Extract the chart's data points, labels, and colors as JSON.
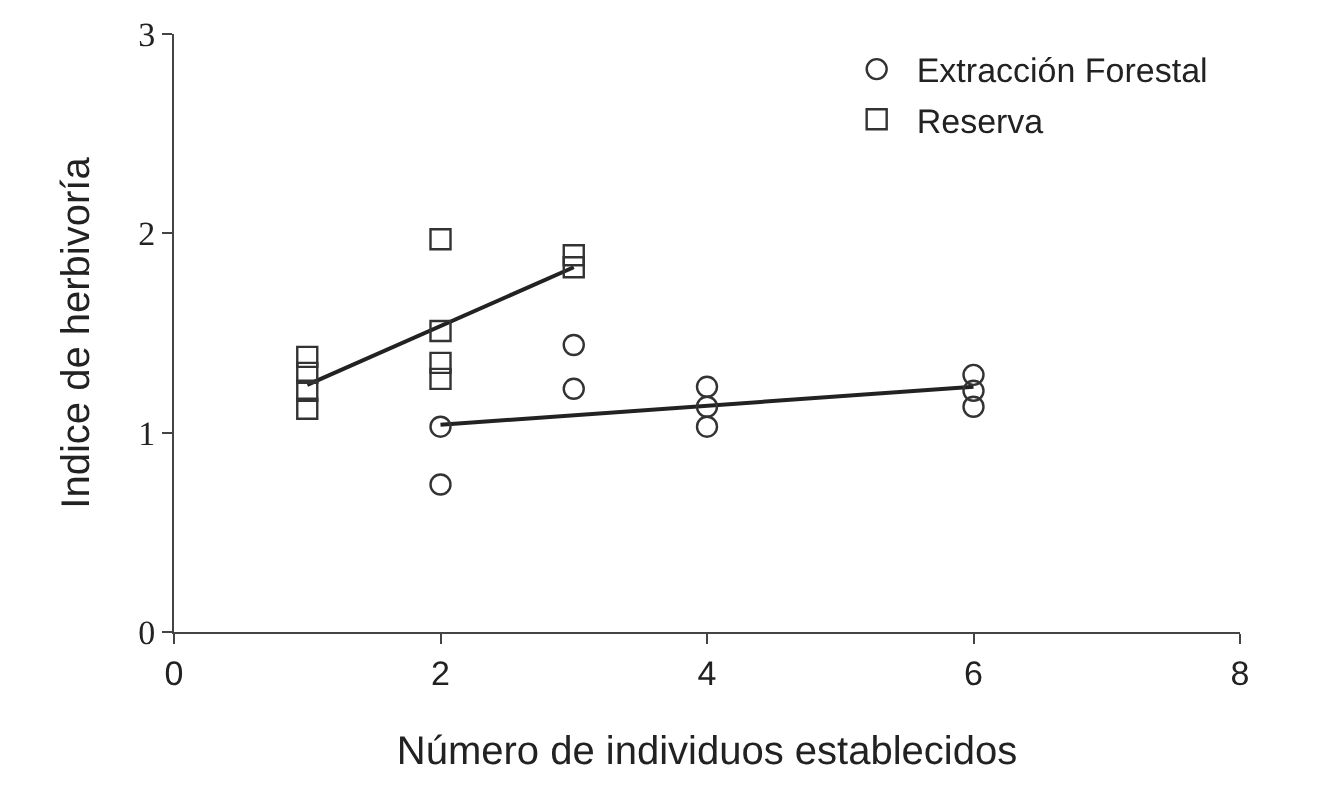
{
  "chart_data": {
    "type": "scatter",
    "xlabel": "Número de individuos establecidos",
    "ylabel": "Indice de herbivoría",
    "xlim": [
      0,
      8
    ],
    "xticks": [
      0,
      2,
      4,
      6,
      8
    ],
    "ylim": [
      0,
      3
    ],
    "yticks": [
      0,
      1,
      2,
      3
    ],
    "grid": false,
    "legend": "top right",
    "series": [
      {
        "name": "Extracción Forestal",
        "color": "#333333",
        "marker": "circle",
        "x": [
          2,
          2,
          3,
          3,
          4,
          4,
          4,
          6,
          6,
          6
        ],
        "values": [
          1.03,
          0.74,
          1.44,
          1.22,
          1.23,
          1.13,
          1.03,
          1.29,
          1.21,
          1.13
        ]
      },
      {
        "name": "Reserva",
        "color": "#333333",
        "marker": "square",
        "x": [
          1,
          1,
          1,
          1,
          2,
          2,
          2,
          2,
          3,
          3
        ],
        "values": [
          1.38,
          1.3,
          1.21,
          1.12,
          1.97,
          1.51,
          1.35,
          1.27,
          1.89,
          1.83
        ]
      },
      {
        "type": "line",
        "color": "#222222",
        "marker": "none",
        "x": [
          2,
          6
        ],
        "values": [
          1.04,
          1.23
        ]
      },
      {
        "type": "line",
        "color": "#222222",
        "marker": "none",
        "x": [
          1,
          3
        ],
        "values": [
          1.24,
          1.83
        ]
      }
    ]
  }
}
